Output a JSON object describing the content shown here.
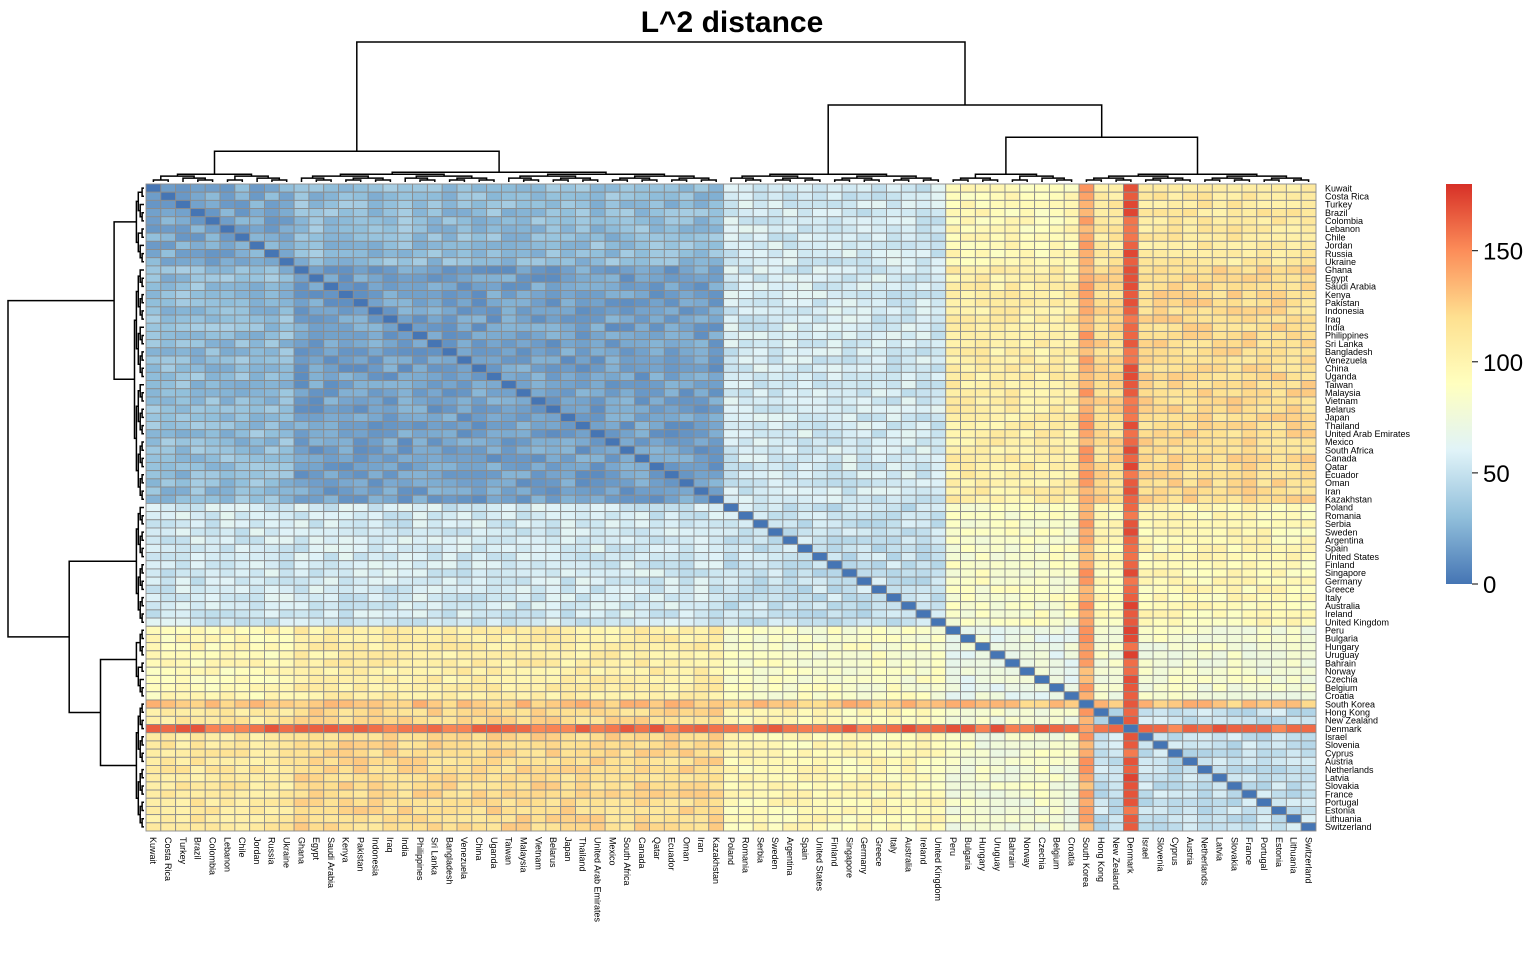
{
  "chart_data": {
    "type": "heatmap",
    "title": "L^2 distance",
    "labels": [
      "Kuwait",
      "Costa Rica",
      "Turkey",
      "Brazil",
      "Colombia",
      "Lebanon",
      "Chile",
      "Jordan",
      "Russia",
      "Ukraine",
      "Ghana",
      "Egypt",
      "Saudi Arabia",
      "Kenya",
      "Pakistan",
      "Indonesia",
      "Iraq",
      "India",
      "Philippines",
      "Sri Lanka",
      "Bangladesh",
      "Venezuela",
      "China",
      "Uganda",
      "Taiwan",
      "Malaysia",
      "Vietnam",
      "Belarus",
      "Japan",
      "Thailand",
      "United Arab Emirates",
      "Mexico",
      "South Africa",
      "Canada",
      "Qatar",
      "Ecuador",
      "Oman",
      "Iran",
      "Kazakhstan",
      "Poland",
      "Romania",
      "Serbia",
      "Sweden",
      "Argentina",
      "Spain",
      "United States",
      "Finland",
      "Singapore",
      "Germany",
      "Greece",
      "Italy",
      "Australia",
      "Ireland",
      "United Kingdom",
      "Peru",
      "Bulgaria",
      "Hungary",
      "Uruguay",
      "Bahrain",
      "Norway",
      "Czechia",
      "Belgium",
      "Croatia",
      "South Korea",
      "Hong Kong",
      "New Zealand",
      "Denmark",
      "Israel",
      "Slovenia",
      "Cyprus",
      "Austria",
      "Netherlands",
      "Latvia",
      "Slovakia",
      "France",
      "Portugal",
      "Estonia",
      "Lithuania",
      "Switzerland"
    ],
    "group_sizes": [
      10,
      29,
      15,
      9,
      16
    ],
    "group_base": [
      [
        22,
        30,
        55,
        95,
        110
      ],
      [
        30,
        18,
        55,
        105,
        120
      ],
      [
        55,
        55,
        50,
        85,
        95
      ],
      [
        95,
        105,
        85,
        70,
        80
      ],
      [
        110,
        120,
        95,
        80,
        50
      ]
    ],
    "special_columns": [
      {
        "label": "South Korea",
        "value": 140
      },
      {
        "label": "Denmark",
        "value": 165
      }
    ],
    "special_rows": [
      {
        "label": "South Korea",
        "value": 130
      },
      {
        "label": "Denmark",
        "value": 160
      }
    ],
    "color_scale": {
      "min": 0,
      "max": 180,
      "stops": [
        "#4575b4",
        "#91bfdb",
        "#e0f3f8",
        "#ffffbf",
        "#fee090",
        "#fc8d59",
        "#d73027"
      ],
      "ticks": [
        0,
        50,
        100,
        150
      ]
    },
    "dendrogram_visible": true,
    "legend_position": "right"
  }
}
